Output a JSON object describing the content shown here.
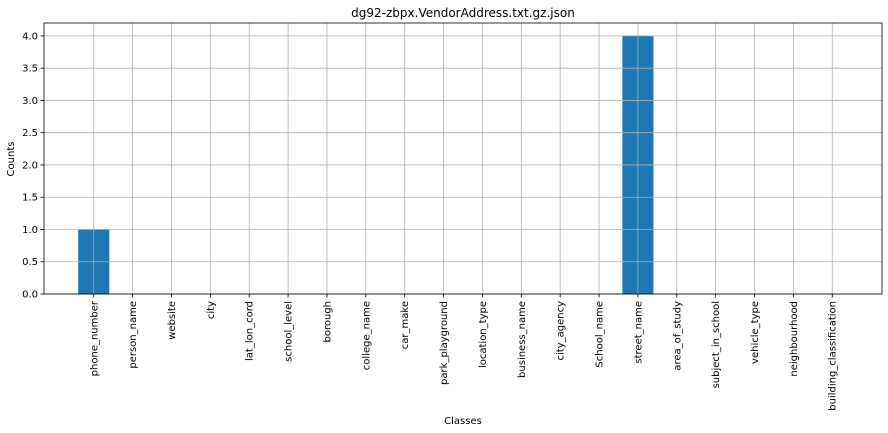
{
  "chart_data": {
    "type": "bar",
    "title": "dg92-zbpx.VendorAddress.txt.gz.json",
    "xlabel": "Classes",
    "ylabel": "Counts",
    "categories": [
      "phone_number",
      "person_name",
      "website",
      "city",
      "lat_lon_cord",
      "school_level",
      "borough",
      "college_name",
      "car_make",
      "park_playground",
      "location_type",
      "business_name",
      "city_agency",
      "School_name",
      "street_name",
      "area_of_study",
      "subject_in_school",
      "vehicle_type",
      "neighbourhood",
      "building_classification"
    ],
    "values": [
      1,
      0,
      0,
      0,
      0,
      0,
      0,
      0,
      0,
      0,
      0,
      0,
      0,
      0,
      4,
      0,
      0,
      0,
      0,
      0
    ],
    "ylim": [
      0,
      4.2
    ],
    "yticks": [
      "0.0",
      "0.5",
      "1.0",
      "1.5",
      "2.0",
      "2.5",
      "3.0",
      "3.5",
      "4.0"
    ],
    "grid": true,
    "bar_color": "#1f77b4",
    "grid_color": "#b0b0b0"
  }
}
